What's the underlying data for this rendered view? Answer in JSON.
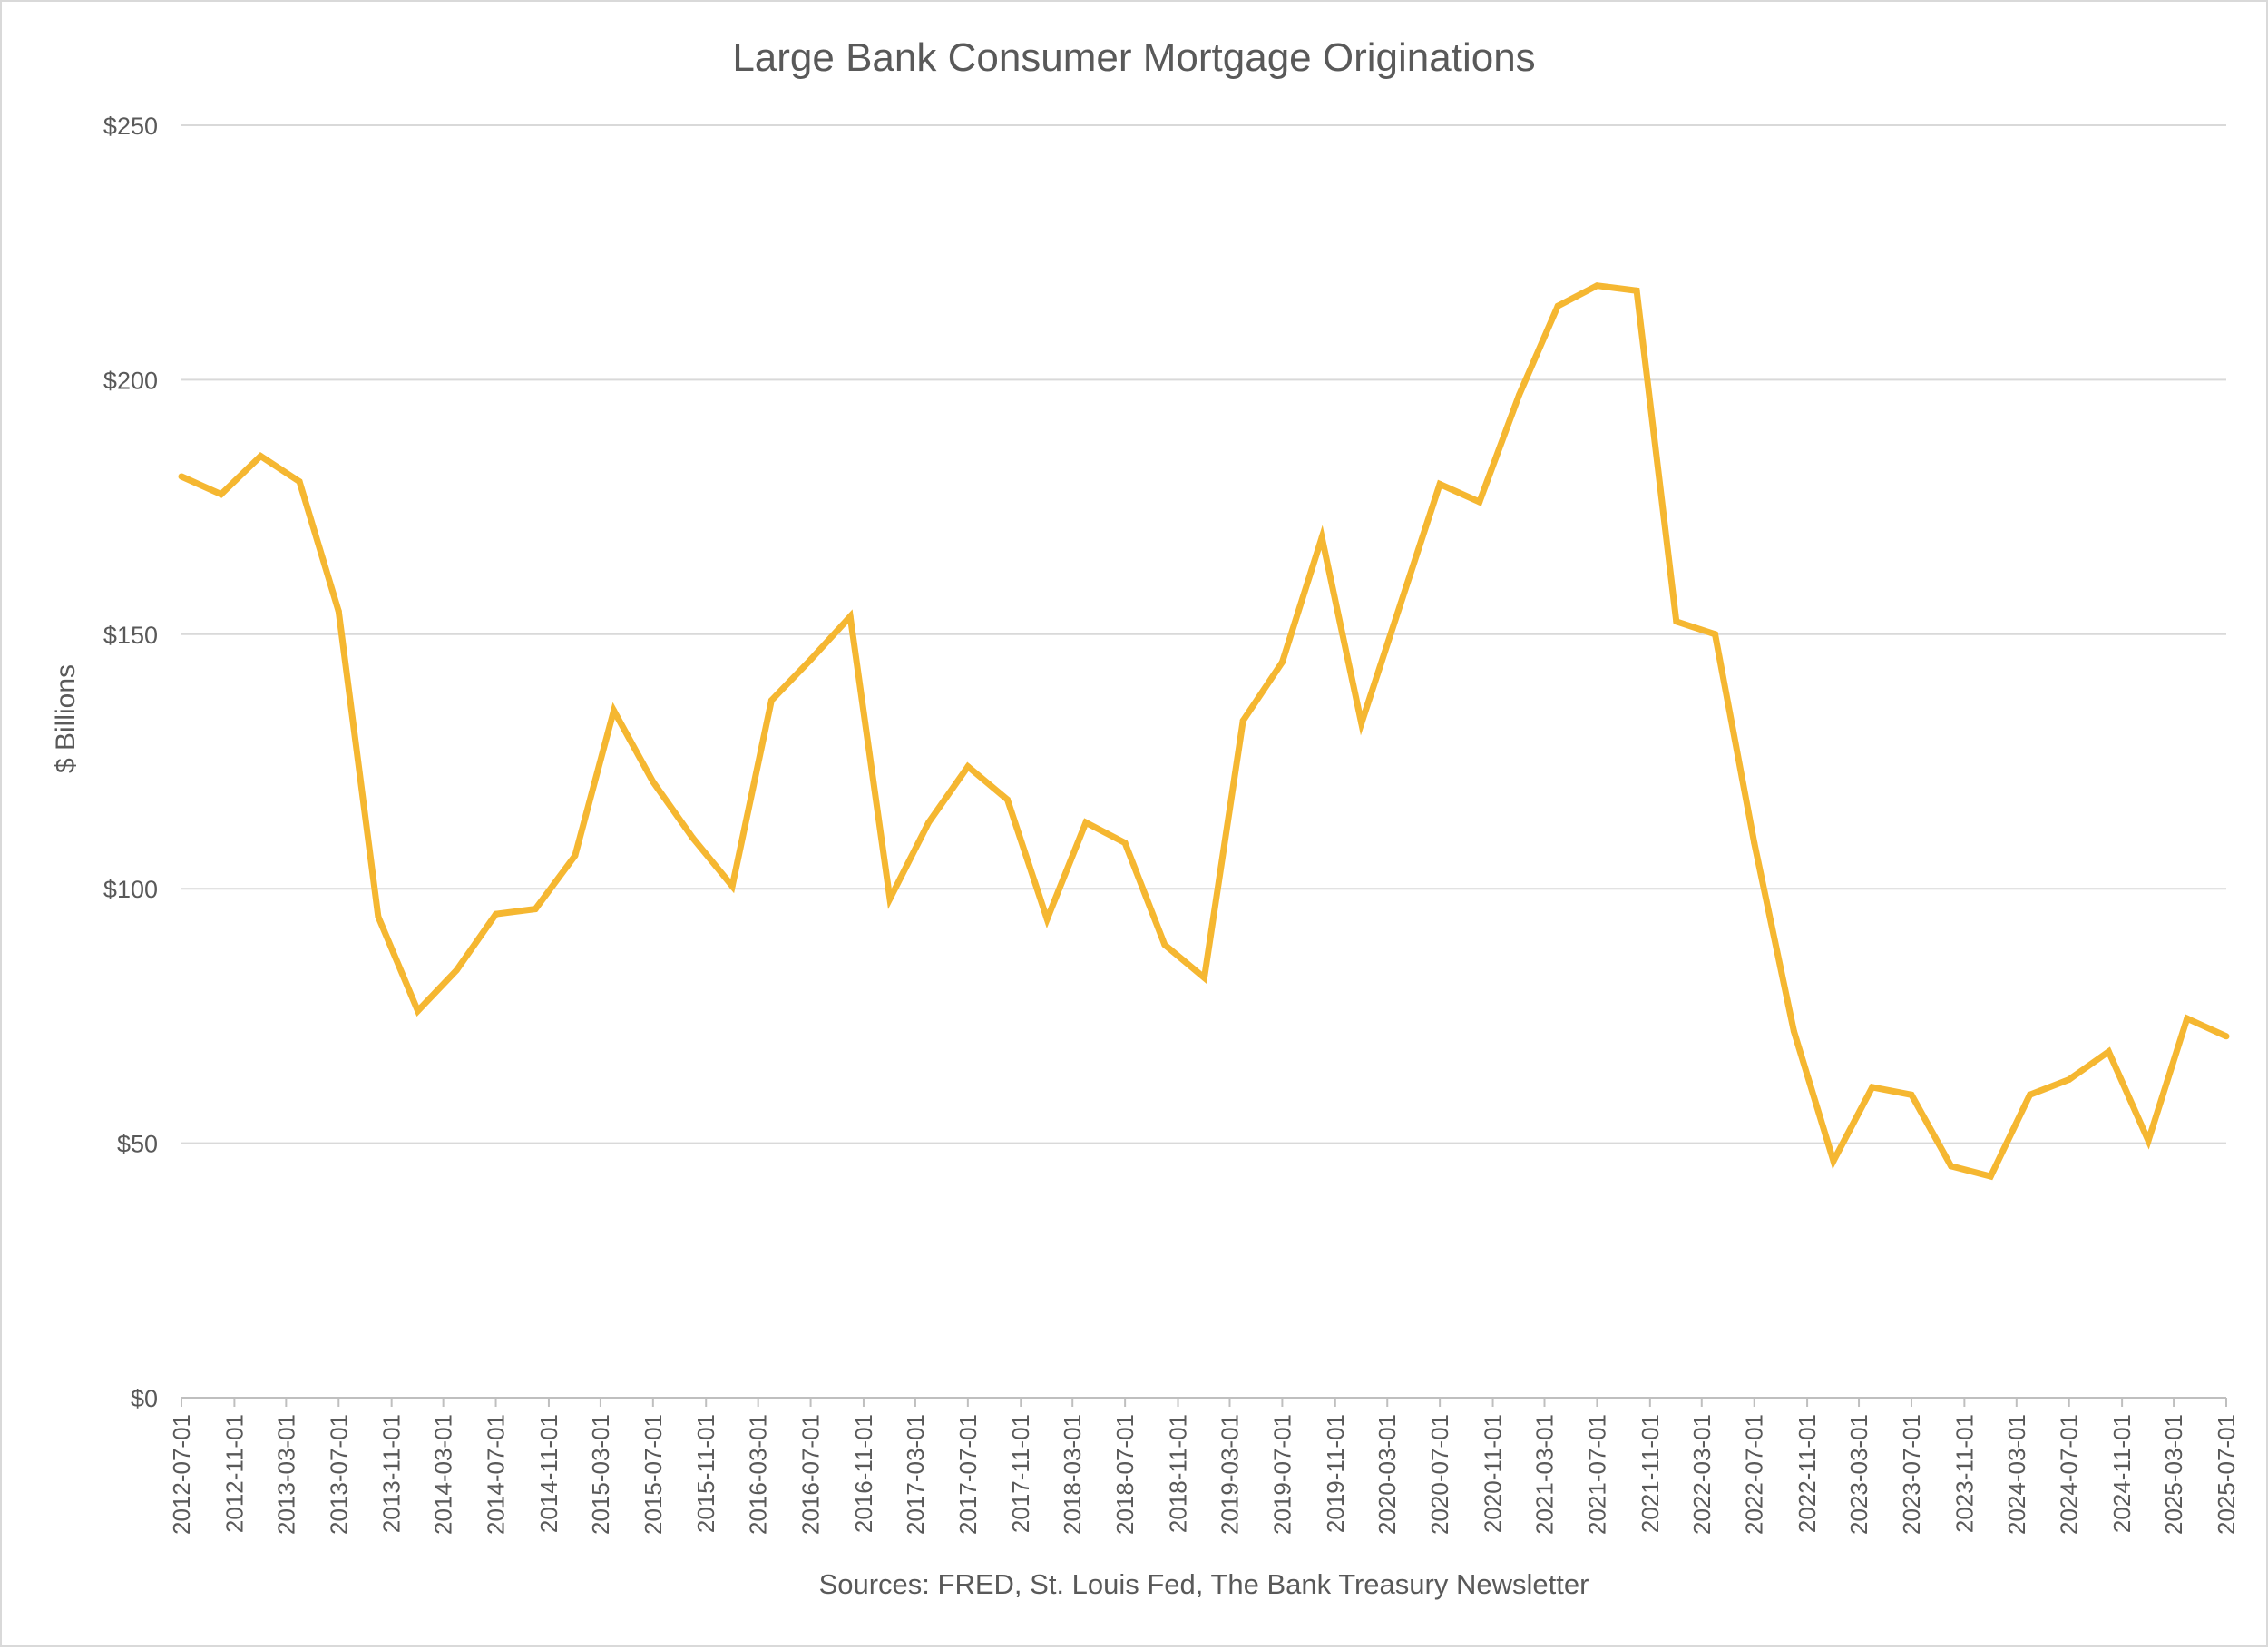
{
  "chart_data": {
    "type": "line",
    "title": "Large Bank Consumer Mortgage Originations",
    "ylabel": "$ Billions",
    "xlabel": "",
    "source": "Sources: FRED, St. Louis Fed, The Bank Treasury Newsletter",
    "ylim": [
      0,
      250
    ],
    "yticks": [
      0,
      50,
      100,
      150,
      200,
      250
    ],
    "ytick_labels": [
      "$0",
      "$50",
      "$100",
      "$150",
      "$200",
      "$250"
    ],
    "grid": true,
    "legend": "none",
    "line_color": "#F5B731",
    "grid_color": "#d9d9d9",
    "x_tick_labels": [
      "2012-07-01",
      "2012-11-01",
      "2013-03-01",
      "2013-07-01",
      "2013-11-01",
      "2014-03-01",
      "2014-07-01",
      "2014-11-01",
      "2015-03-01",
      "2015-07-01",
      "2015-11-01",
      "2016-03-01",
      "2016-07-01",
      "2016-11-01",
      "2017-03-01",
      "2017-07-01",
      "2017-11-01",
      "2018-03-01",
      "2018-07-01",
      "2018-11-01",
      "2019-03-01",
      "2019-07-01",
      "2019-11-01",
      "2020-03-01",
      "2020-07-01",
      "2020-11-01",
      "2021-03-01",
      "2021-07-01",
      "2021-11-01",
      "2022-03-01",
      "2022-07-01",
      "2022-11-01",
      "2023-03-01",
      "2023-07-01",
      "2023-11-01",
      "2024-03-01",
      "2024-07-01",
      "2024-11-01",
      "2025-03-01",
      "2025-07-01"
    ],
    "x": [
      "2012-07-01",
      "2012-10-01",
      "2013-01-01",
      "2013-04-01",
      "2013-07-01",
      "2013-10-01",
      "2014-01-01",
      "2014-04-01",
      "2014-07-01",
      "2014-10-01",
      "2015-01-01",
      "2015-04-01",
      "2015-07-01",
      "2015-10-01",
      "2016-01-01",
      "2016-04-01",
      "2016-07-01",
      "2016-10-01",
      "2017-01-01",
      "2017-04-01",
      "2017-07-01",
      "2017-10-01",
      "2018-01-01",
      "2018-04-01",
      "2018-07-01",
      "2018-10-01",
      "2019-01-01",
      "2019-04-01",
      "2019-07-01",
      "2019-10-01",
      "2020-01-01",
      "2020-04-01",
      "2020-07-01",
      "2020-10-01",
      "2021-01-01",
      "2021-04-01",
      "2021-07-01",
      "2021-10-01",
      "2022-01-01",
      "2022-04-01",
      "2022-07-01",
      "2022-10-01",
      "2023-01-01",
      "2023-04-01",
      "2023-07-01",
      "2023-10-01",
      "2024-01-01",
      "2024-04-01",
      "2024-07-01",
      "2024-10-01",
      "2025-01-01",
      "2025-04-01",
      "2025-07-01"
    ],
    "series": [
      {
        "values": [
          181,
          177.5,
          185,
          180,
          154.5,
          94.5,
          76,
          84,
          95,
          96,
          106.5,
          135,
          121,
          110,
          100.5,
          137,
          145,
          153.5,
          98,
          113,
          124,
          117.5,
          94,
          113,
          109,
          89,
          82.5,
          133,
          144.5,
          169,
          132.5,
          156,
          179.5,
          176,
          197,
          214.5,
          218.5,
          217.5,
          152.5,
          150,
          109,
          72,
          46.5,
          61,
          59.5,
          45.5,
          43.5,
          59.5,
          62.5,
          68,
          50.5,
          74.5,
          71
        ]
      }
    ]
  }
}
